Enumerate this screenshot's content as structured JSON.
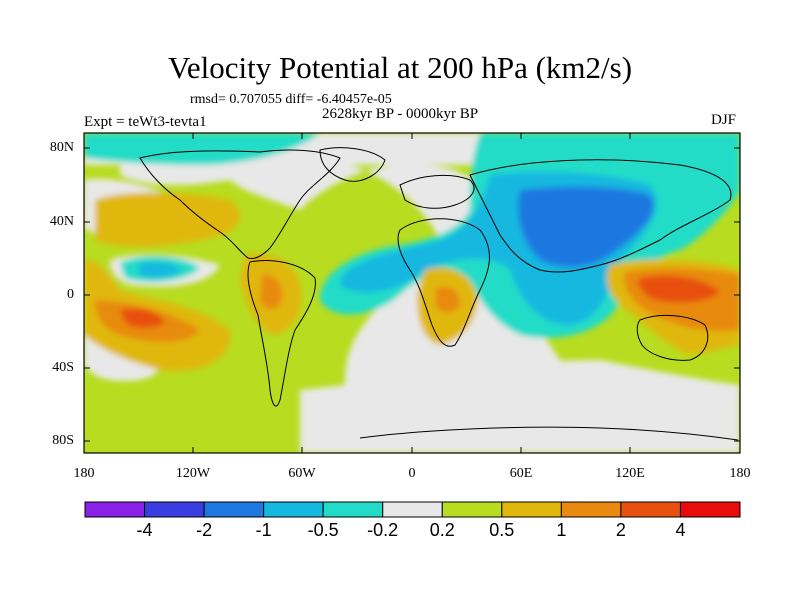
{
  "title": "Velocity Potential at 200 hPa (km2/s)",
  "stats": "rmsd= 0.707055 diff= -6.40457e-05",
  "period": "2628kyr BP - 0000kyr BP",
  "experiment": "Expt = teWt3-tevta1",
  "season": "DJF",
  "lat_labels": [
    "80N",
    "40N",
    "0",
    "40S",
    "80S"
  ],
  "lon_labels": [
    "180",
    "120W",
    "60W",
    "0",
    "60E",
    "120E",
    "180"
  ],
  "colorbar": {
    "colors": [
      "#8a22e8",
      "#3a3ee0",
      "#1e78e0",
      "#16b8e0",
      "#22dcc8",
      "#e8e8e8",
      "#b8dc20",
      "#e0b80c",
      "#e88a10",
      "#e85010",
      "#e80c0c"
    ],
    "labels": [
      "-4",
      "-2",
      "-1",
      "-0.5",
      "-0.2",
      "0.2",
      "0.5",
      "1",
      "2",
      "4"
    ]
  }
}
